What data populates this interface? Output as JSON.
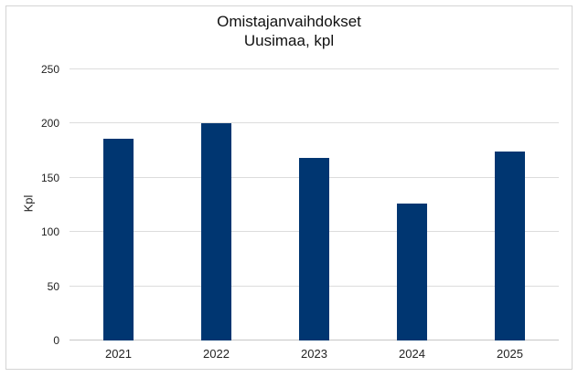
{
  "chart": {
    "title_lines": [
      "Omistajanvaihdokset",
      "Uusimaa, kpl"
    ],
    "y_axis_title": "Kpl"
  },
  "chart_data": {
    "type": "bar",
    "title": "Omistajanvaihdokset Uusimaa, kpl",
    "categories": [
      "2021",
      "2022",
      "2023",
      "2024",
      "2025"
    ],
    "values": [
      186,
      200,
      168,
      126,
      174
    ],
    "xlabel": "",
    "ylabel": "Kpl",
    "ylim": [
      0,
      250
    ],
    "yticks": [
      0,
      50,
      100,
      150,
      200,
      250
    ],
    "grid": true,
    "legend": "none",
    "bar_color": "#003671",
    "gridline_color": "#dcdcdc",
    "baseline_color": "#c6c6c6",
    "border_color": "#d4d4d4",
    "title_color": "#111111",
    "text_color": "#222222"
  }
}
